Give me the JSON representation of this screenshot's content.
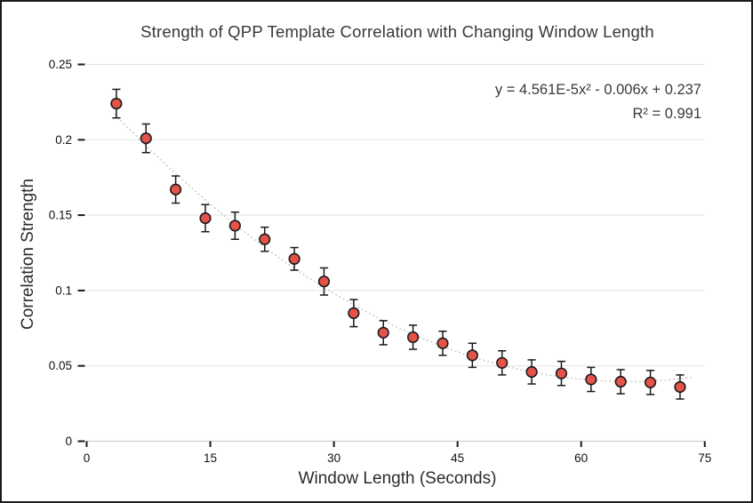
{
  "figure": {
    "background": "#ffffff",
    "border_color": "#1c1c1c"
  },
  "chart_data": {
    "type": "scatter",
    "title": "Strength of QPP Template Correlation with Changing Window Length",
    "xlabel": "Window Length (Seconds)",
    "ylabel": "Correlation Strength",
    "xlim": [
      0,
      75
    ],
    "ylim": [
      0,
      0.25
    ],
    "x_ticks": [
      0,
      15,
      30,
      45,
      60,
      75
    ],
    "x_tick_labels": [
      "0",
      "15",
      "30",
      "45",
      "60",
      "75"
    ],
    "y_ticks": [
      0,
      0.05,
      0.1,
      0.15,
      0.2,
      0.25
    ],
    "y_tick_labels": [
      "0",
      "0.05",
      "0.1",
      "0.15",
      "0.2",
      "0.25"
    ],
    "grid": "horizontal",
    "legend": "none",
    "annotation": {
      "equation": "y = 4.561E-5x² - 0.006x + 0.237",
      "r_squared": "R² = 0.991"
    },
    "trendline": {
      "type": "quadratic",
      "a": 4.561e-05,
      "b": -0.006,
      "c": 0.237,
      "style": "dotted",
      "color": "#c8c8c8",
      "x_start": 3.4,
      "x_end": 73.8
    },
    "style": {
      "grid_color": "#e4e4e4",
      "axis_color": "#cfcfcf",
      "tick_color": "#1a1a1a",
      "tick_label_color": "#111111",
      "error_bar_color": "#1a1a1a"
    },
    "series": [
      {
        "name": "QPP template correlation",
        "marker": "circle",
        "marker_color": "#e4524a",
        "marker_edge_color": "#1c1c1c",
        "x": [
          3.6,
          7.2,
          10.8,
          14.4,
          18,
          21.6,
          25.2,
          28.8,
          32.4,
          36,
          39.6,
          43.2,
          46.8,
          50.4,
          54,
          57.6,
          61.2,
          64.8,
          68.4,
          72
        ],
        "y": [
          0.224,
          0.201,
          0.167,
          0.148,
          0.143,
          0.134,
          0.121,
          0.106,
          0.085,
          0.072,
          0.069,
          0.065,
          0.057,
          0.052,
          0.046,
          0.045,
          0.041,
          0.0395,
          0.039,
          0.036
        ],
        "yerr": [
          0.0095,
          0.0095,
          0.009,
          0.009,
          0.009,
          0.008,
          0.0075,
          0.009,
          0.009,
          0.008,
          0.008,
          0.008,
          0.008,
          0.008,
          0.008,
          0.008,
          0.008,
          0.008,
          0.008,
          0.008
        ]
      }
    ]
  }
}
